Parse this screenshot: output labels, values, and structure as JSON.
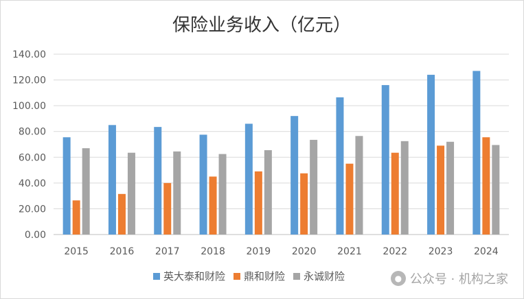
{
  "chart_data": {
    "type": "bar",
    "title": "保险业务收入（亿元）",
    "xlabel": "",
    "ylabel": "",
    "categories": [
      "2015",
      "2016",
      "2017",
      "2018",
      "2019",
      "2020",
      "2021",
      "2022",
      "2023",
      "2024"
    ],
    "series": [
      {
        "name": "英大泰和财险",
        "color": "#5b9bd5",
        "values": [
          75.5,
          85.0,
          83.5,
          77.5,
          86.0,
          92.0,
          106.5,
          116.0,
          124.0,
          127.0
        ]
      },
      {
        "name": "鼎和财险",
        "color": "#ed7d31",
        "values": [
          26.5,
          31.5,
          40.0,
          45.0,
          49.0,
          47.5,
          55.0,
          63.5,
          69.0,
          75.5
        ]
      },
      {
        "name": "永诚财险",
        "color": "#a5a5a5",
        "values": [
          67.0,
          63.5,
          64.5,
          62.5,
          65.5,
          73.5,
          76.5,
          72.5,
          72.0,
          69.5
        ]
      }
    ],
    "ylim": [
      0,
      140
    ],
    "yticks": [
      "0.00",
      "20.00",
      "40.00",
      "60.00",
      "80.00",
      "100.00",
      "120.00",
      "140.00"
    ],
    "grid": true,
    "legend_position": "bottom"
  },
  "watermark": {
    "text": "公众号 · 机构之家",
    "icon": "wechat-icon"
  }
}
